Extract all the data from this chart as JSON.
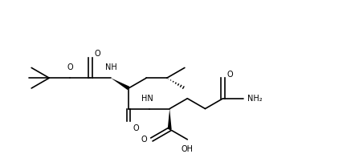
{
  "figsize": [
    4.42,
    1.92
  ],
  "dpi": 100,
  "bg_color": "#ffffff",
  "lw": 1.2,
  "fs": 7.0,
  "xlim": [
    0,
    11
  ],
  "ylim": [
    2.5,
    7.5
  ]
}
